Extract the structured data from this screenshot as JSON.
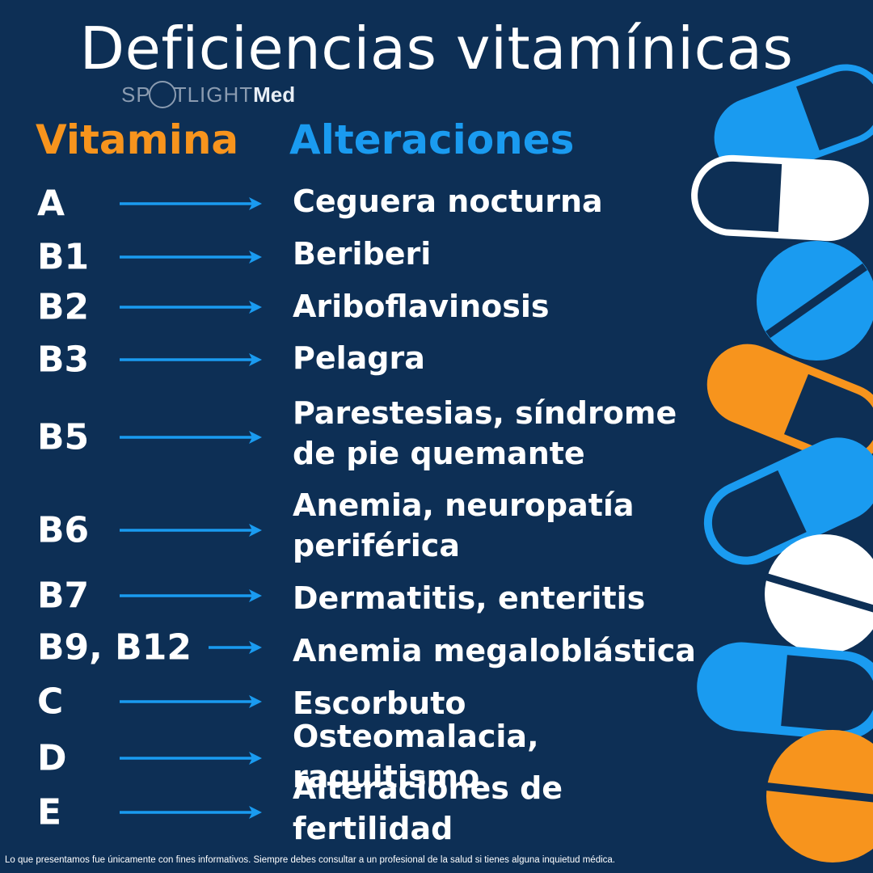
{
  "title": "Deficiencias vitamínicas",
  "logo": {
    "part1": "SP",
    "part2": "TLIGHT",
    "part3": "Med"
  },
  "headers": {
    "vitamina": "Vitamina",
    "alteraciones": "Alteraciones"
  },
  "colors": {
    "background": "#0d2f55",
    "orange": "#f7941d",
    "blue": "#1a9bf0",
    "white": "#ffffff"
  },
  "rows": [
    {
      "vitamin": "A",
      "alteration": "Ceguera nocturna"
    },
    {
      "vitamin": "B1",
      "alteration": "Beriberi"
    },
    {
      "vitamin": "B2",
      "alteration": "Ariboflavinosis"
    },
    {
      "vitamin": "B3",
      "alteration": "Pelagra"
    },
    {
      "vitamin": "B5",
      "alteration": "Parestesias, síndrome de pie quemante"
    },
    {
      "vitamin": "B6",
      "alteration": "Anemia, neuropatía periférica"
    },
    {
      "vitamin": "B7",
      "alteration": "Dermatitis, enteritis"
    },
    {
      "vitamin": "B9, B12",
      "alteration": "Anemia megaloblástica"
    },
    {
      "vitamin": "C",
      "alteration": "Escorbuto"
    },
    {
      "vitamin": "D",
      "alteration": "Osteomalacia, raquitismo"
    },
    {
      "vitamin": "E",
      "alteration": "Alteraciones de fertilidad"
    }
  ],
  "disclaimer": "Lo que presentamos fue únicamente con fines informativos. Siempre debes consultar a un profesional de la salud si tienes alguna inquietud médica."
}
